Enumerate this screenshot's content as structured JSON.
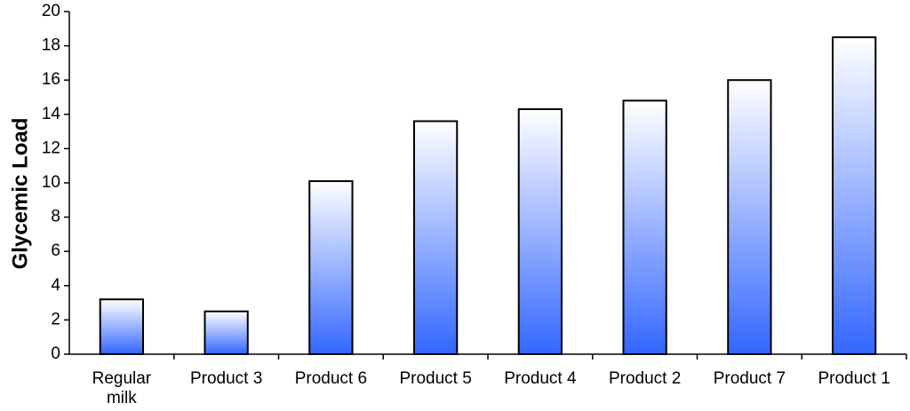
{
  "chart_data": {
    "type": "bar",
    "categories": [
      [
        "Regular",
        "milk"
      ],
      [
        "Product 3"
      ],
      [
        "Product 6"
      ],
      [
        "Product 5"
      ],
      [
        "Product 4"
      ],
      [
        "Product 2"
      ],
      [
        "Product 7"
      ],
      [
        "Product 1"
      ]
    ],
    "values": [
      3.2,
      2.5,
      10.1,
      13.6,
      14.3,
      14.8,
      16.0,
      18.5
    ],
    "ylabel": "Glycemic Load",
    "ylim": [
      0,
      20
    ],
    "yticks": [
      0,
      2,
      4,
      6,
      8,
      10,
      12,
      14,
      16,
      18,
      20
    ],
    "grid": false,
    "colors": {
      "bar_top": "#ffffff",
      "bar_bottom": "#3366ff",
      "edge": "#000000"
    }
  }
}
